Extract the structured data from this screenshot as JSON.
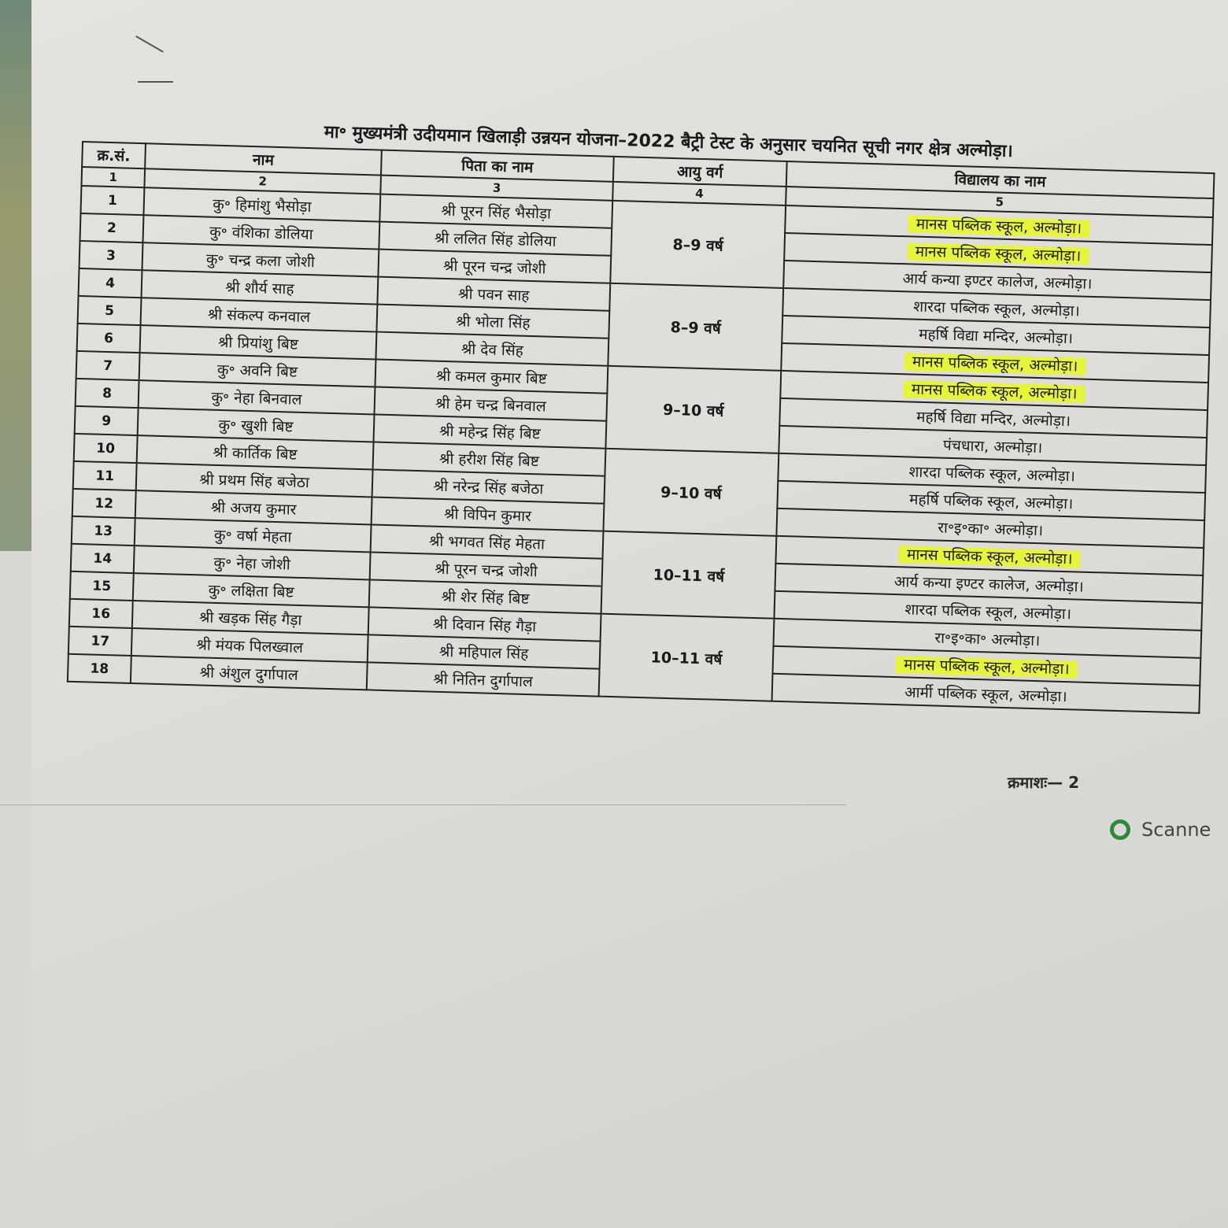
{
  "document": {
    "title": "मा॰ मुख्यमंत्री उदीयमान खिलाड़ी उन्नयन योजना–2022 बैट्री टेस्ट के अनुसार चयनित सूची नगर क्षेत्र अल्मोड़ा।",
    "columns": [
      "क्र.सं.",
      "नाम",
      "पिता का नाम",
      "आयु वर्ग",
      "विद्यालय का नाम"
    ],
    "column_numbers": [
      "1",
      "2",
      "3",
      "4",
      "5"
    ],
    "highlight_color": "#e6f53c",
    "rows": [
      {
        "sn": "1",
        "name": "कु॰ हिमांशु भैसोड़ा",
        "father": "श्री पूरन सिंह भैसोड़ा",
        "school": "मानस पब्लिक स्कूल, अल्मोड़ा।",
        "highlighted": true
      },
      {
        "sn": "2",
        "name": "कु॰ वंशिका डोलिया",
        "father": "श्री ललित सिंह डोलिया",
        "school": "मानस पब्लिक स्कूल, अल्मोड़ा।",
        "highlighted": true
      },
      {
        "sn": "3",
        "name": "कु॰ चन्द्र कला जोशी",
        "father": "श्री पूरन चन्द्र जोशी",
        "school": "आर्य कन्या इण्टर कालेज, अल्मोड़ा।",
        "highlighted": false
      },
      {
        "sn": "4",
        "name": "श्री शौर्य साह",
        "father": "श्री पवन साह",
        "school": "शारदा पब्लिक स्कूल, अल्मोड़ा।",
        "highlighted": false
      },
      {
        "sn": "5",
        "name": "श्री संकल्प कनवाल",
        "father": "श्री भोला सिंह",
        "school": "महर्षि विद्या मन्दिर, अल्मोड़ा।",
        "highlighted": false
      },
      {
        "sn": "6",
        "name": "श्री प्रियांशु बिष्ट",
        "father": "श्री देव सिंह",
        "school": "मानस पब्लिक स्कूल, अल्मोड़ा।",
        "highlighted": true
      },
      {
        "sn": "7",
        "name": "कु॰ अवनि बिष्ट",
        "father": "श्री कमल कुमार बिष्ट",
        "school": "मानस पब्लिक स्कूल, अल्मोड़ा।",
        "highlighted": true
      },
      {
        "sn": "8",
        "name": "कु॰ नेहा बिनवाल",
        "father": "श्री हेम चन्द्र बिनवाल",
        "school": "महर्षि विद्या मन्दिर, अल्मोड़ा।",
        "highlighted": false
      },
      {
        "sn": "9",
        "name": "कु॰ खुशी बिष्ट",
        "father": "श्री महेन्द्र सिंह बिष्ट",
        "school": "पंचधारा, अल्मोड़ा।",
        "highlighted": false
      },
      {
        "sn": "10",
        "name": "श्री कार्तिक बिष्ट",
        "father": "श्री हरीश सिंह बिष्ट",
        "school": "शारदा पब्लिक स्कूल, अल्मोड़ा।",
        "highlighted": false
      },
      {
        "sn": "11",
        "name": "श्री प्रथम सिंह बजेठा",
        "father": "श्री नरेन्द्र सिंह बजेठा",
        "school": "महर्षि पब्लिक स्कूल, अल्मोड़ा।",
        "highlighted": false
      },
      {
        "sn": "12",
        "name": "श्री अजय कुमार",
        "father": "श्री विपिन कुमार",
        "school": "रा॰इ॰का॰ अल्मोड़ा।",
        "highlighted": false
      },
      {
        "sn": "13",
        "name": "कु॰ वर्षा मेहता",
        "father": "श्री भगवत सिंह मेहता",
        "school": "मानस पब्लिक स्कूल, अल्मोड़ा।",
        "highlighted": true
      },
      {
        "sn": "14",
        "name": "कु॰ नेहा जोशी",
        "father": "श्री पूरन चन्द्र जोशी",
        "school": "आर्य कन्या इण्टर कालेज, अल्मोड़ा।",
        "highlighted": false
      },
      {
        "sn": "15",
        "name": "कु॰ लक्षिता बिष्ट",
        "father": "श्री शेर सिंह बिष्ट",
        "school": "शारदा पब्लिक स्कूल, अल्मोड़ा।",
        "highlighted": false
      },
      {
        "sn": "16",
        "name": "श्री खड़क सिंह गैड़ा",
        "father": "श्री दिवान सिंह गैड़ा",
        "school": "रा॰इ॰का॰ अल्मोड़ा।",
        "highlighted": false
      },
      {
        "sn": "17",
        "name": "श्री मंयक पिलख्वाल",
        "father": "श्री महिपाल सिंह",
        "school": "मानस पब्लिक स्कूल, अल्मोड़ा।",
        "highlighted": true
      },
      {
        "sn": "18",
        "name": "श्री अंशुल दुर्गापाल",
        "father": "श्री नितिन दुर्गापाल",
        "school": "आर्मी पब्लिक स्कूल, अल्मोड़ा।",
        "highlighted": false
      }
    ],
    "age_groups": [
      "8–9 वर्ष",
      "8–9 वर्ष",
      "9–10 वर्ष",
      "9–10 वर्ष",
      "10–11 वर्ष",
      "10–11 वर्ष"
    ],
    "footer": "क्रमाशः— 2"
  },
  "watermark": {
    "text": "Scanne",
    "icon": "scanner-logo-icon",
    "color": "#2c8a3a"
  }
}
